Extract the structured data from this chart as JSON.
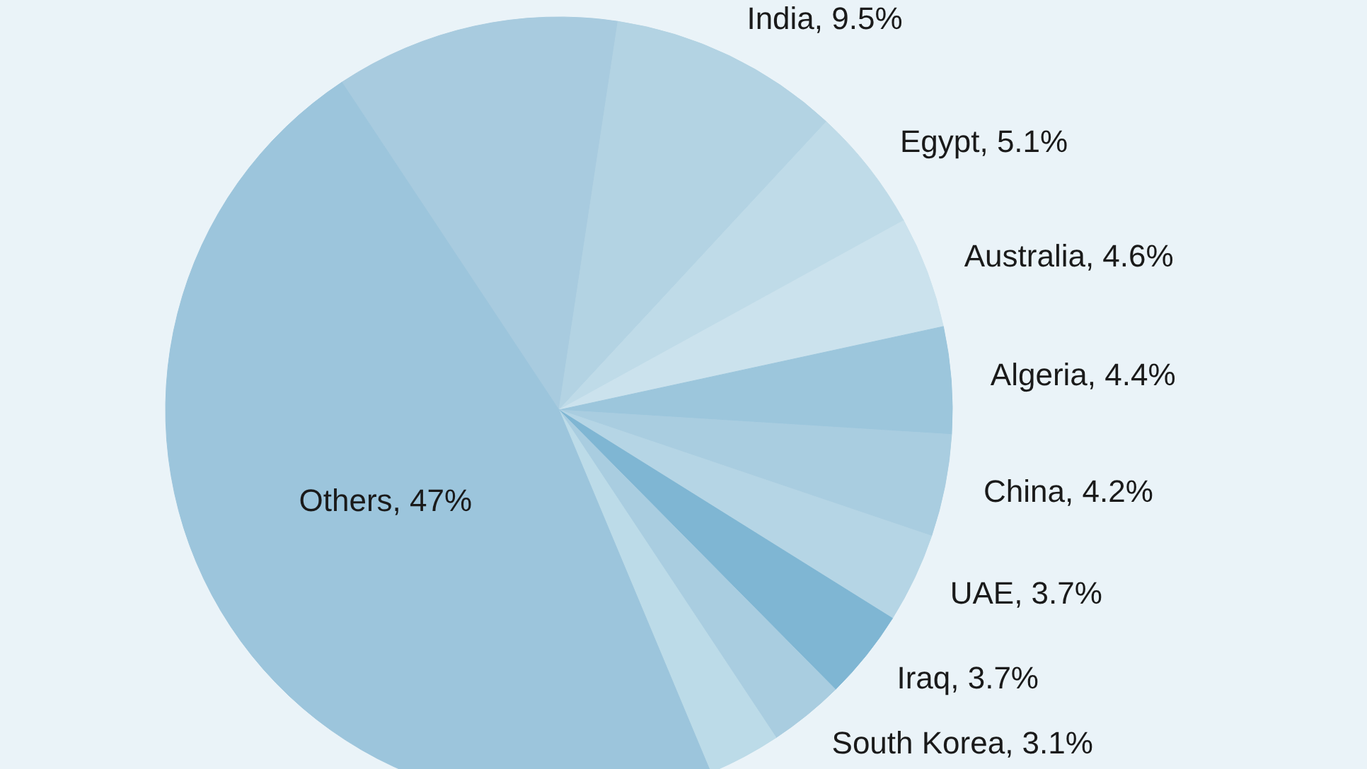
{
  "chart_data": {
    "type": "pie",
    "categories": [
      null,
      "India",
      "Egypt",
      "Australia",
      "Algeria",
      "China",
      "UAE",
      "Iraq",
      "South Korea",
      null,
      "Others"
    ],
    "values": [
      11.7,
      9.5,
      5.1,
      4.6,
      4.4,
      4.2,
      3.7,
      3.7,
      3.1,
      3.0,
      47
    ],
    "value_labels": [
      null,
      "9.5%",
      "5.1%",
      "4.6%",
      "4.4%",
      "4.2%",
      "3.7%",
      "3.7%",
      "3.1%",
      null,
      "47%"
    ],
    "colors": [
      "#a8cbdf",
      "#b3d3e3",
      "#bfdbe8",
      "#cbe2ed",
      "#9cc6dc",
      "#a9cde0",
      "#b5d5e5",
      "#7fb6d3",
      "#a9cde0",
      "#bcdbe8",
      "#9cc5dc"
    ]
  }
}
